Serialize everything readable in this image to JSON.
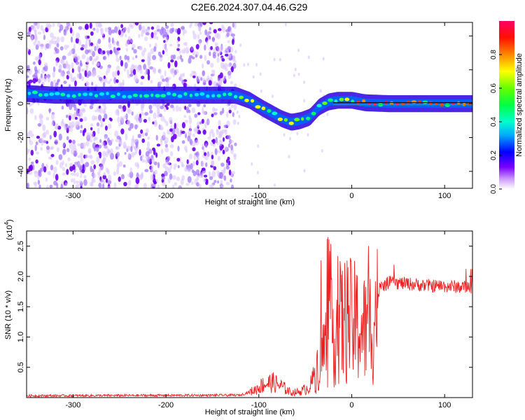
{
  "title": "C2E6.2024.307.04.46.G29",
  "chart_data": [
    {
      "type": "heatmap",
      "xlabel": "Height of straight line (km)",
      "ylabel": "Frequency (Hz)",
      "xlim": [
        -350,
        130
      ],
      "ylim": [
        -50,
        48
      ],
      "x_ticks": [
        -300,
        -200,
        -100,
        0,
        100
      ],
      "y_ticks": [
        -40,
        -20,
        0,
        20,
        40
      ],
      "grid": false,
      "colorbar": {
        "label": "Normalized spectral amplitude",
        "range": [
          0,
          1
        ],
        "ticks": [
          "0.0",
          "0.2",
          "0.4",
          "0.6",
          "0.8"
        ],
        "colors": [
          "#ffffff",
          "#7a00ff",
          "#0000ff",
          "#00c8ff",
          "#00ff66",
          "#88ff00",
          "#ffff00",
          "#ff8800",
          "#ff0000",
          "#ff0066"
        ]
      },
      "ridge": {
        "x": [
          -350,
          -320,
          -290,
          -260,
          -230,
          -200,
          -170,
          -140,
          -125,
          -110,
          -95,
          -85,
          -75,
          -65,
          -55,
          -45,
          -35,
          -25,
          -15,
          0,
          15,
          40,
          80,
          130
        ],
        "y": [
          6,
          5,
          5,
          5,
          5,
          5,
          5,
          5,
          5,
          2,
          -3,
          -6,
          -9,
          -11,
          -10,
          -8,
          -2,
          1,
          2,
          2,
          0.5,
          0,
          0,
          0
        ]
      },
      "noise_extent_x": [
        -350,
        -125
      ]
    },
    {
      "type": "line",
      "xlabel": "Height of straight line (km)",
      "ylabel": "SNR (10 * v/v)",
      "y_scale_label": "(x10",
      "y_scale_exponent": "4",
      "xlim": [
        -350,
        130
      ],
      "ylim": [
        0,
        2.75
      ],
      "x_ticks": [
        -300,
        -200,
        -100,
        0,
        100
      ],
      "y_ticks": [
        "0.5",
        "1.0",
        "1.5",
        "2.0",
        "2.5"
      ],
      "grid": false,
      "color": "#ee2222",
      "envelope": {
        "x": [
          -350,
          -120,
          -105,
          -95,
          -85,
          -75,
          -65,
          -55,
          -45,
          -35,
          -25,
          -15,
          -5,
          5,
          15,
          25,
          30,
          40,
          60,
          80,
          100,
          115,
          130
        ],
        "y": [
          0.03,
          0.04,
          0.12,
          0.22,
          0.25,
          0.18,
          0.08,
          0.1,
          0.18,
          0.55,
          0.9,
          1.1,
          1.15,
          1.1,
          1.0,
          1.2,
          1.8,
          1.9,
          1.88,
          1.85,
          1.84,
          1.83,
          1.82
        ]
      }
    }
  ]
}
